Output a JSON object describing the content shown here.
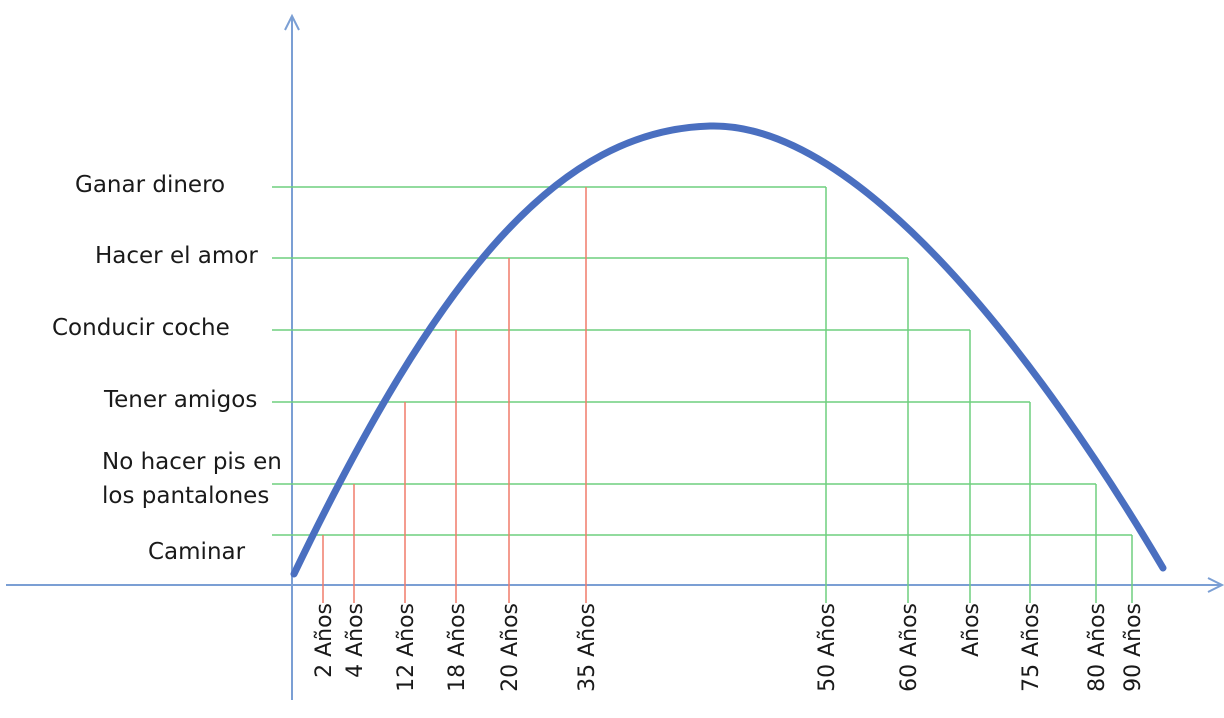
{
  "levels": [
    {
      "key": "ganar",
      "lines": [
        "Ganar dinero"
      ]
    },
    {
      "key": "amor",
      "lines": [
        "Hacer el amor"
      ]
    },
    {
      "key": "coche",
      "lines": [
        "Conducir coche"
      ]
    },
    {
      "key": "amigos",
      "lines": [
        "Tener amigos"
      ]
    },
    {
      "key": "pis",
      "lines": [
        "No hacer pis en",
        "los pantalones"
      ]
    },
    {
      "key": "caminar",
      "lines": [
        "Caminar"
      ]
    }
  ],
  "ages": [
    {
      "key": "age-2",
      "label": "2 Años",
      "side": "rising"
    },
    {
      "key": "age-4",
      "label": "4 Años",
      "side": "rising"
    },
    {
      "key": "age-12",
      "label": "12 Años",
      "side": "rising"
    },
    {
      "key": "age-18",
      "label": "18 Años",
      "side": "rising"
    },
    {
      "key": "age-20",
      "label": "20 Años",
      "side": "rising"
    },
    {
      "key": "age-35",
      "label": "35 Años",
      "side": "rising"
    },
    {
      "key": "age-50",
      "label": "50 Años",
      "side": "falling"
    },
    {
      "key": "age-60",
      "label": "60 Años",
      "side": "falling"
    },
    {
      "key": "age-unlabeled",
      "label": "Años",
      "side": "falling"
    },
    {
      "key": "age-75",
      "label": "75 Años",
      "side": "falling"
    },
    {
      "key": "age-80",
      "label": "80 Años",
      "side": "falling"
    },
    {
      "key": "age-90",
      "label": "90 Años",
      "side": "falling"
    }
  ],
  "colors": {
    "axis": "#7b9fd4",
    "curve": "#4a6fc0",
    "level_line": "#6fcf7f",
    "drop_rising": "#f07c6a",
    "drop_falling": "#6fcf7f"
  }
}
